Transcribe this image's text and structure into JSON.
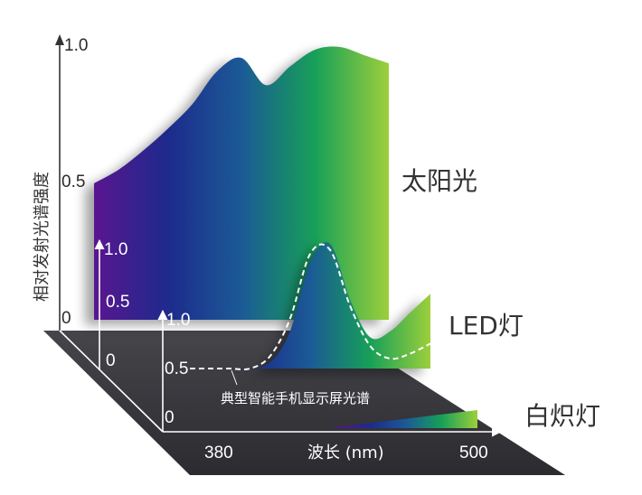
{
  "chart_data": {
    "type": "area",
    "title": "",
    "ylabel": "相对发射光谱强度",
    "xlabel": "波长 (nm)",
    "xlim": [
      380,
      500
    ],
    "ylim": [
      0,
      1.0
    ],
    "x_ticks": [
      "380",
      "500"
    ],
    "y_ticks": [
      "0",
      "0.5",
      "1.0"
    ],
    "annotation": "典型智能手机显示屏光谱",
    "gradient_colors": [
      "#5a1590",
      "#1d2a8c",
      "#1b5a96",
      "#17a058",
      "#9ccf3b"
    ],
    "series": [
      {
        "name": "太阳光",
        "x": [
          380,
          390,
          400,
          410,
          420,
          430,
          440,
          450,
          460,
          470,
          480,
          490,
          500
        ],
        "values": [
          0.5,
          0.55,
          0.62,
          0.7,
          0.79,
          0.91,
          0.96,
          0.86,
          0.93,
          0.99,
          1.0,
          0.97,
          0.94
        ]
      },
      {
        "name": "LED灯",
        "x": [
          380,
          390,
          400,
          410,
          420,
          430,
          440,
          450,
          460,
          470,
          480,
          490,
          500
        ],
        "values": [
          0.0,
          0.0,
          0.0,
          0.0,
          0.05,
          0.3,
          0.85,
          1.0,
          0.55,
          0.25,
          0.3,
          0.45,
          0.6
        ]
      },
      {
        "name": "白炽灯",
        "x": [
          380,
          390,
          400,
          410,
          420,
          430,
          440,
          450,
          460,
          470,
          480,
          490,
          500
        ],
        "values": [
          0.02,
          0.03,
          0.05,
          0.07,
          0.09,
          0.11,
          0.13,
          0.15,
          0.17,
          0.19,
          0.21,
          0.23,
          0.25
        ]
      },
      {
        "name": "典型智能手机显示屏光谱",
        "x": [
          380,
          390,
          400,
          410,
          420,
          430,
          440,
          450,
          460,
          470,
          480,
          490,
          500
        ],
        "values": [
          0.0,
          0.0,
          0.0,
          0.0,
          0.1,
          0.4,
          0.92,
          0.95,
          0.5,
          0.18,
          0.08,
          0.12,
          0.2
        ]
      }
    ]
  }
}
